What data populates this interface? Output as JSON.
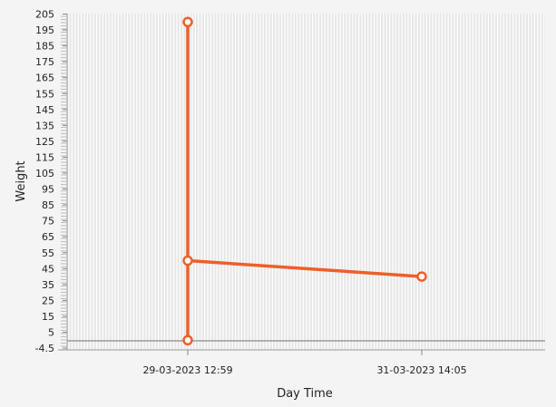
{
  "chart_data": {
    "type": "line",
    "xlabel": "Day Time",
    "ylabel": "Weight",
    "ylim": [
      -4.5,
      205
    ],
    "y_ticks": [
      -4.5,
      5,
      15,
      25,
      35,
      45,
      55,
      65,
      75,
      85,
      95,
      105,
      115,
      125,
      135,
      145,
      155,
      165,
      175,
      185,
      195,
      205
    ],
    "x_ticks": [
      "29-03-2023 12:59",
      "31-03-2023 14:05"
    ],
    "points": [
      {
        "x": "29-03-2023 12:59",
        "y": 0
      },
      {
        "x": "29-03-2023 12:59",
        "y": 200
      },
      {
        "x": "29-03-2023 12:59",
        "y": 50
      },
      {
        "x": "31-03-2023 14:05",
        "y": 40
      }
    ],
    "grid": true,
    "colors": {
      "series": "#ee5f2a",
      "plot_background": "#e7e7e7",
      "grid_line": "#ffffff",
      "baseline": "#8a8a8a"
    }
  }
}
